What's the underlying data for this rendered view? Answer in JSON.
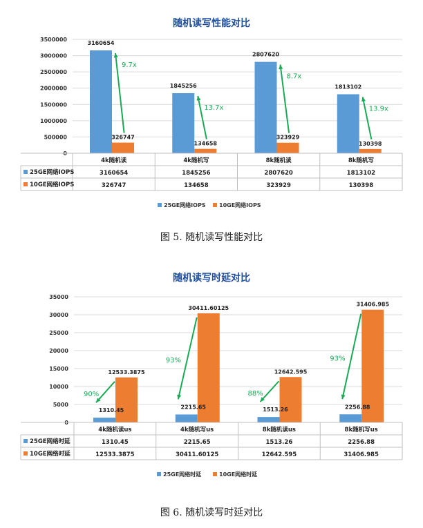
{
  "chart_data": [
    {
      "type": "bar",
      "title": "随机读写性能对比",
      "categories": [
        "4k随机读",
        "4k随机写",
        "8k随机读",
        "8k随机写"
      ],
      "series": [
        {
          "name": "25GE网络IOPS",
          "values": [
            3160654,
            1845256,
            2807620,
            1813102
          ],
          "labels": [
            "3160654",
            "1845256",
            "2807620",
            "1813102"
          ]
        },
        {
          "name": "10GE网络IOPS",
          "values": [
            326747,
            134658,
            323929,
            130398
          ],
          "labels": [
            "326747",
            "134658",
            "323929",
            "130398"
          ]
        }
      ],
      "ylim": [
        0,
        3500000
      ],
      "yticks": [
        "0",
        "500000",
        "1000000",
        "1500000",
        "2000000",
        "2500000",
        "3000000",
        "3500000"
      ],
      "ratio_annotations": [
        "9.7x",
        "13.7x",
        "8.7x",
        "13.9x"
      ],
      "grid": true,
      "legend_position": "bottom",
      "data_table": true
    },
    {
      "type": "bar",
      "title": "随机读写时延对比",
      "categories": [
        "4k随机读us",
        "4k随机写us",
        "8k随机读us",
        "8k随机写us"
      ],
      "series": [
        {
          "name": "25GE网络时延",
          "values": [
            1310.45,
            2215.65,
            1513.26,
            2256.88
          ],
          "labels": [
            "1310.45",
            "2215.65",
            "1513.26",
            "2256.88"
          ]
        },
        {
          "name": "10GE网络时延",
          "values": [
            12533.3875,
            30411.60125,
            12642.595,
            31406.985
          ],
          "labels": [
            "12533.3875",
            "30411.60125",
            "12642.595",
            "31406.985"
          ]
        }
      ],
      "ylim": [
        0,
        35000
      ],
      "yticks": [
        "0",
        "5000",
        "10000",
        "15000",
        "20000",
        "25000",
        "30000",
        "35000"
      ],
      "ratio_annotations": [
        "90%",
        "93%",
        "88%",
        "93%"
      ],
      "grid": true,
      "legend_position": "bottom",
      "data_table": true
    }
  ],
  "captions": [
    "图 5. 随机读写性能对比",
    "图 6. 随机读写时延对比"
  ],
  "colors": {
    "series1": "#5b9bd5",
    "series2": "#ed7d31",
    "title": "#1f4e9c",
    "arrow": "#1aaa55",
    "grid": "#d9d9d9"
  }
}
